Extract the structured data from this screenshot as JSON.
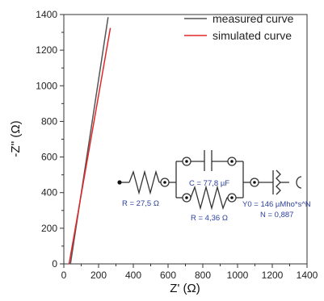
{
  "chart_data": {
    "type": "line",
    "xlabel": "Z' (Ω)",
    "ylabel": "-Z'' (Ω)",
    "xlim": [
      0,
      1400
    ],
    "ylim": [
      0,
      1400
    ],
    "xticks": [
      0,
      200,
      400,
      600,
      800,
      1000,
      1200,
      1400
    ],
    "yticks": [
      0,
      200,
      400,
      600,
      800,
      1000,
      1200,
      1400
    ],
    "legend_position": "top-right",
    "series": [
      {
        "name": "measured curve",
        "color": "#555555",
        "x": [
          38,
          255
        ],
        "y": [
          0,
          1385
        ]
      },
      {
        "name": "simulated curve",
        "color": "#e0282a",
        "x": [
          30,
          268
        ],
        "y": [
          0,
          1325
        ]
      }
    ],
    "equivalent_circuit": {
      "r1_label": "R = 27,5 Ω",
      "c_label": "C = 77,8 µF",
      "r2_label": "R = 4,36 Ω",
      "y0_label": "Y0 = 146 µMho*s^N",
      "n_label": "N = 0,887",
      "color": "#2b3f9e"
    }
  }
}
